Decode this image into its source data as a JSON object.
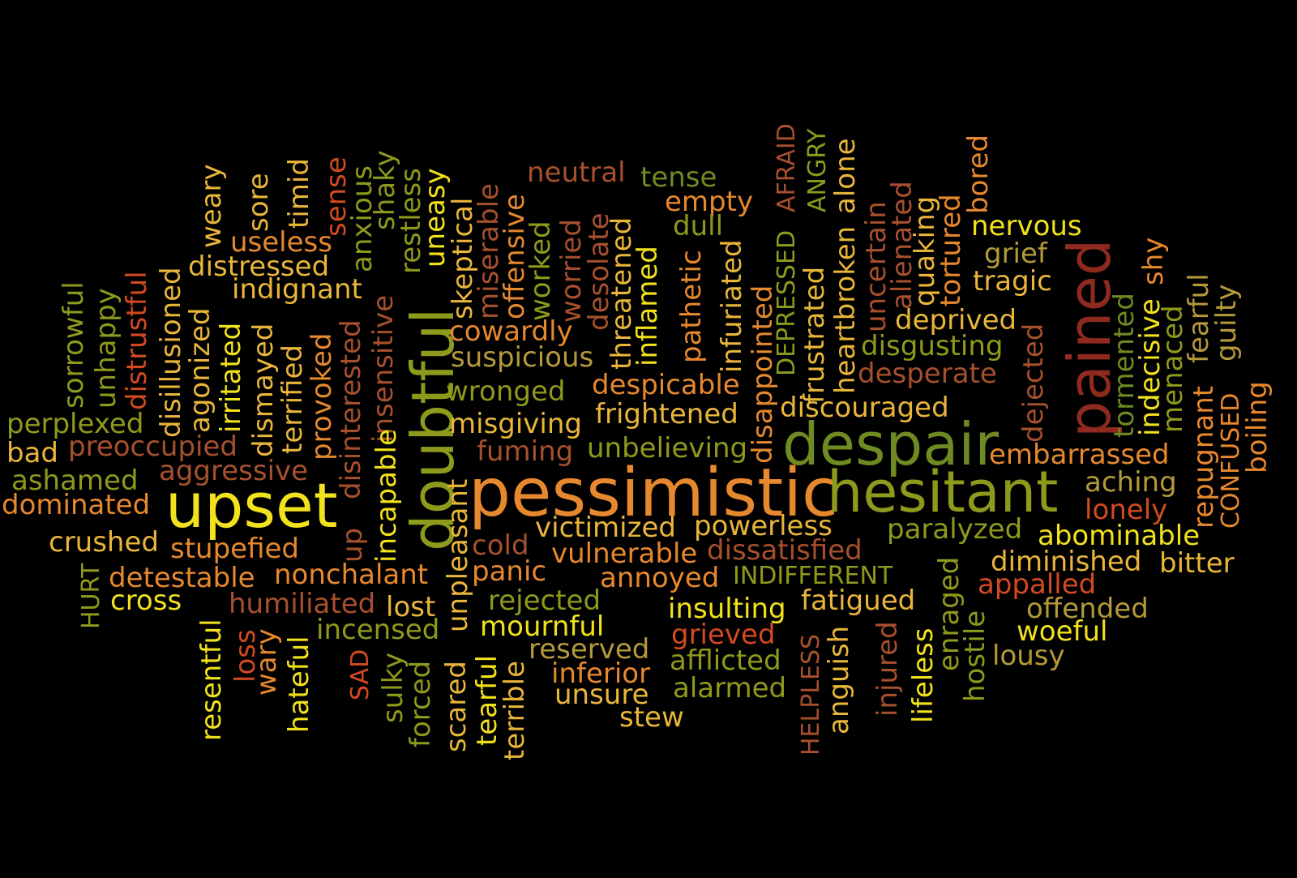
{
  "palette": {
    "yellow": "#f2e21c",
    "gold": "#e9b63a",
    "orange": "#e6882e",
    "olive": "#8e9a1c",
    "green": "#6f8a22",
    "brown": "#a7502e",
    "red": "#d24a22",
    "dark_red": "#8e2a20",
    "khaki": "#b49a3a"
  },
  "words": [
    {
      "text": "pessimistic",
      "color": "orange"
    },
    {
      "text": "despair",
      "color": "green"
    },
    {
      "text": "hesitant",
      "color": "olive"
    },
    {
      "text": "upset",
      "color": "yellow"
    },
    {
      "text": "doubtful",
      "color": "olive"
    },
    {
      "text": "pained",
      "color": "dark_red"
    },
    {
      "text": "neutral",
      "color": "brown"
    },
    {
      "text": "tense",
      "color": "green"
    },
    {
      "text": "empty",
      "color": "orange"
    },
    {
      "text": "dull",
      "color": "olive"
    },
    {
      "text": "nervous",
      "color": "yellow"
    },
    {
      "text": "grief",
      "color": "khaki"
    },
    {
      "text": "tragic",
      "color": "gold"
    },
    {
      "text": "deprived",
      "color": "gold"
    },
    {
      "text": "disgusting",
      "color": "olive"
    },
    {
      "text": "desperate",
      "color": "brown"
    },
    {
      "text": "discouraged",
      "color": "gold"
    },
    {
      "text": "embarrassed",
      "color": "orange"
    },
    {
      "text": "aching",
      "color": "khaki"
    },
    {
      "text": "lonely",
      "color": "red"
    },
    {
      "text": "abominable",
      "color": "yellow"
    },
    {
      "text": "diminished",
      "color": "gold"
    },
    {
      "text": "bitter",
      "color": "gold"
    },
    {
      "text": "appalled",
      "color": "red"
    },
    {
      "text": "offended",
      "color": "khaki"
    },
    {
      "text": "woeful",
      "color": "yellow"
    },
    {
      "text": "lousy",
      "color": "khaki"
    },
    {
      "text": "paralyzed",
      "color": "olive"
    },
    {
      "text": "dissatisfied",
      "color": "brown"
    },
    {
      "text": "INDIFFERENT",
      "color": "olive"
    },
    {
      "text": "fatigued",
      "color": "gold"
    },
    {
      "text": "insulting",
      "color": "yellow"
    },
    {
      "text": "grieved",
      "color": "red"
    },
    {
      "text": "afflicted",
      "color": "olive"
    },
    {
      "text": "alarmed",
      "color": "olive"
    },
    {
      "text": "powerless",
      "color": "gold"
    },
    {
      "text": "victimized",
      "color": "gold"
    },
    {
      "text": "vulnerable",
      "color": "orange"
    },
    {
      "text": "annoyed",
      "color": "orange"
    },
    {
      "text": "rejected",
      "color": "olive"
    },
    {
      "text": "mournful",
      "color": "yellow"
    },
    {
      "text": "reserved",
      "color": "khaki"
    },
    {
      "text": "inferior",
      "color": "orange"
    },
    {
      "text": "unsure",
      "color": "gold"
    },
    {
      "text": "stew",
      "color": "gold"
    },
    {
      "text": "cold",
      "color": "brown"
    },
    {
      "text": "panic",
      "color": "orange"
    },
    {
      "text": "unbelieving",
      "color": "olive"
    },
    {
      "text": "fuming",
      "color": "brown"
    },
    {
      "text": "misgiving",
      "color": "gold"
    },
    {
      "text": "wronged",
      "color": "olive"
    },
    {
      "text": "frightened",
      "color": "gold"
    },
    {
      "text": "despicable",
      "color": "orange"
    },
    {
      "text": "suspicious",
      "color": "khaki"
    },
    {
      "text": "cowardly",
      "color": "orange"
    },
    {
      "text": "perplexed",
      "color": "olive"
    },
    {
      "text": "bad",
      "color": "gold"
    },
    {
      "text": "preoccupied",
      "color": "brown"
    },
    {
      "text": "aggressive",
      "color": "brown"
    },
    {
      "text": "ashamed",
      "color": "olive"
    },
    {
      "text": "dominated",
      "color": "orange"
    },
    {
      "text": "crushed",
      "color": "gold"
    },
    {
      "text": "stupefied",
      "color": "orange"
    },
    {
      "text": "detestable",
      "color": "orange"
    },
    {
      "text": "nonchalant",
      "color": "orange"
    },
    {
      "text": "cross",
      "color": "yellow"
    },
    {
      "text": "humiliated",
      "color": "brown"
    },
    {
      "text": "lost",
      "color": "gold"
    },
    {
      "text": "incensed",
      "color": "olive"
    },
    {
      "text": "useless",
      "color": "orange"
    },
    {
      "text": "distressed",
      "color": "gold"
    },
    {
      "text": "indignant",
      "color": "gold"
    },
    {
      "text": "sorrowful",
      "color": "olive"
    },
    {
      "text": "unhappy",
      "color": "olive"
    },
    {
      "text": "distrustful",
      "color": "red"
    },
    {
      "text": "disillusioned",
      "color": "gold"
    },
    {
      "text": "agonized",
      "color": "gold"
    },
    {
      "text": "irritated",
      "color": "yellow"
    },
    {
      "text": "dismayed",
      "color": "gold"
    },
    {
      "text": "terrified",
      "color": "gold"
    },
    {
      "text": "provoked",
      "color": "orange"
    },
    {
      "text": "disinterested",
      "color": "brown"
    },
    {
      "text": "up",
      "color": "brown"
    },
    {
      "text": "insensitive",
      "color": "brown"
    },
    {
      "text": "incapable",
      "color": "yellow"
    },
    {
      "text": "weary",
      "color": "gold"
    },
    {
      "text": "sore",
      "color": "gold"
    },
    {
      "text": "timid",
      "color": "gold"
    },
    {
      "text": "sense",
      "color": "red"
    },
    {
      "text": "anxious",
      "color": "olive"
    },
    {
      "text": "shaky",
      "color": "olive"
    },
    {
      "text": "restless",
      "color": "olive"
    },
    {
      "text": "uneasy",
      "color": "yellow"
    },
    {
      "text": "skeptical",
      "color": "gold"
    },
    {
      "text": "miserable",
      "color": "brown"
    },
    {
      "text": "offensive",
      "color": "orange"
    },
    {
      "text": "worked",
      "color": "olive"
    },
    {
      "text": "worried",
      "color": "brown"
    },
    {
      "text": "desolate",
      "color": "brown"
    },
    {
      "text": "threatened",
      "color": "gold"
    },
    {
      "text": "inflamed",
      "color": "yellow"
    },
    {
      "text": "pathetic",
      "color": "orange"
    },
    {
      "text": "infuriated",
      "color": "gold"
    },
    {
      "text": "disappointed",
      "color": "orange"
    },
    {
      "text": "DEPRESSED",
      "color": "olive"
    },
    {
      "text": "AFRAID",
      "color": "brown"
    },
    {
      "text": "frustrated",
      "color": "gold"
    },
    {
      "text": "ANGRY",
      "color": "olive"
    },
    {
      "text": "heartbroken",
      "color": "gold"
    },
    {
      "text": "alone",
      "color": "gold"
    },
    {
      "text": "uncertain",
      "color": "brown"
    },
    {
      "text": "alienated",
      "color": "brown"
    },
    {
      "text": "quaking",
      "color": "gold"
    },
    {
      "text": "tortured",
      "color": "orange"
    },
    {
      "text": "bored",
      "color": "orange"
    },
    {
      "text": "dejected",
      "color": "brown"
    },
    {
      "text": "tormented",
      "color": "green"
    },
    {
      "text": "indecisive",
      "color": "yellow"
    },
    {
      "text": "shy",
      "color": "orange"
    },
    {
      "text": "menaced",
      "color": "olive"
    },
    {
      "text": "repugnant",
      "color": "orange"
    },
    {
      "text": "fearful",
      "color": "khaki"
    },
    {
      "text": "guilty",
      "color": "khaki"
    },
    {
      "text": "CONFUSED",
      "color": "orange"
    },
    {
      "text": "boiling",
      "color": "orange"
    },
    {
      "text": "HURT",
      "color": "olive"
    },
    {
      "text": "resentful",
      "color": "yellow"
    },
    {
      "text": "loss",
      "color": "red"
    },
    {
      "text": "wary",
      "color": "orange"
    },
    {
      "text": "hateful",
      "color": "yellow"
    },
    {
      "text": "SAD",
      "color": "red"
    },
    {
      "text": "sulky",
      "color": "olive"
    },
    {
      "text": "forced",
      "color": "olive"
    },
    {
      "text": "unpleasant",
      "color": "gold"
    },
    {
      "text": "scared",
      "color": "gold"
    },
    {
      "text": "tearful",
      "color": "yellow"
    },
    {
      "text": "terrible",
      "color": "gold"
    },
    {
      "text": "HELPLESS",
      "color": "brown"
    },
    {
      "text": "anguish",
      "color": "gold"
    },
    {
      "text": "injured",
      "color": "brown"
    },
    {
      "text": "lifeless",
      "color": "yellow"
    },
    {
      "text": "enraged",
      "color": "olive"
    },
    {
      "text": "hostile",
      "color": "olive"
    }
  ]
}
